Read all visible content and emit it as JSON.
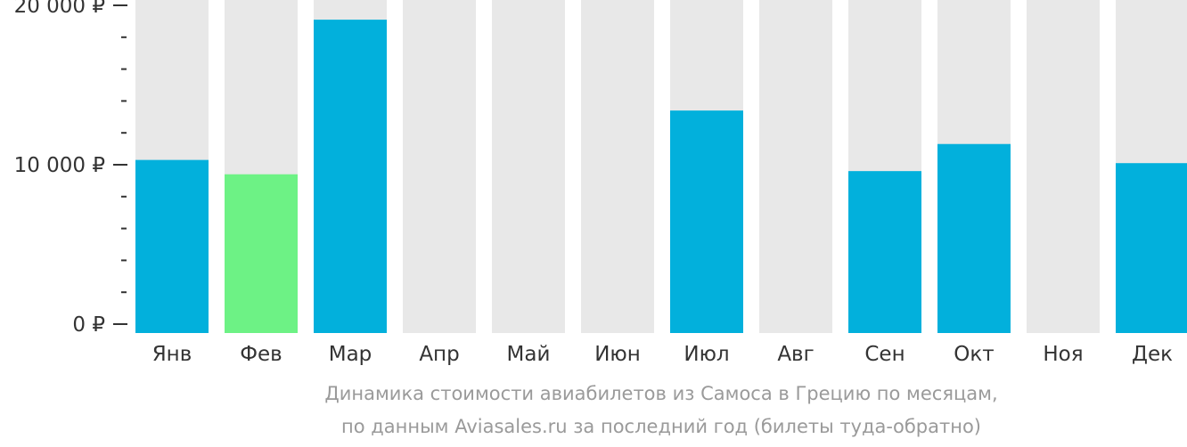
{
  "chart_data": {
    "type": "bar",
    "categories": [
      "Янв",
      "Фев",
      "Мар",
      "Апр",
      "Май",
      "Июн",
      "Июл",
      "Авг",
      "Сен",
      "Окт",
      "Ноя",
      "Дек"
    ],
    "values": [
      10300,
      9400,
      19100,
      null,
      null,
      null,
      13400,
      null,
      9600,
      11300,
      null,
      10100
    ],
    "highlight_index": 1,
    "ylim": [
      0,
      20000
    ],
    "yticks": [
      {
        "value": 0,
        "label": "0 ₽"
      },
      {
        "value": 10000,
        "label": "10 000 ₽"
      },
      {
        "value": 20000,
        "label": "20 000 ₽"
      }
    ],
    "minor_tick_step": 2000,
    "colors": {
      "bar": "#02b0dc",
      "highlight": "#6df285",
      "background_bar": "#e8e8e8",
      "axis": "#333333"
    },
    "caption_line1": "Динамика стоимости авиабилетов из Самоса в Грецию по месяцам,",
    "caption_line2": "по данным Aviasales.ru за последний год (билеты туда-обратно)"
  }
}
